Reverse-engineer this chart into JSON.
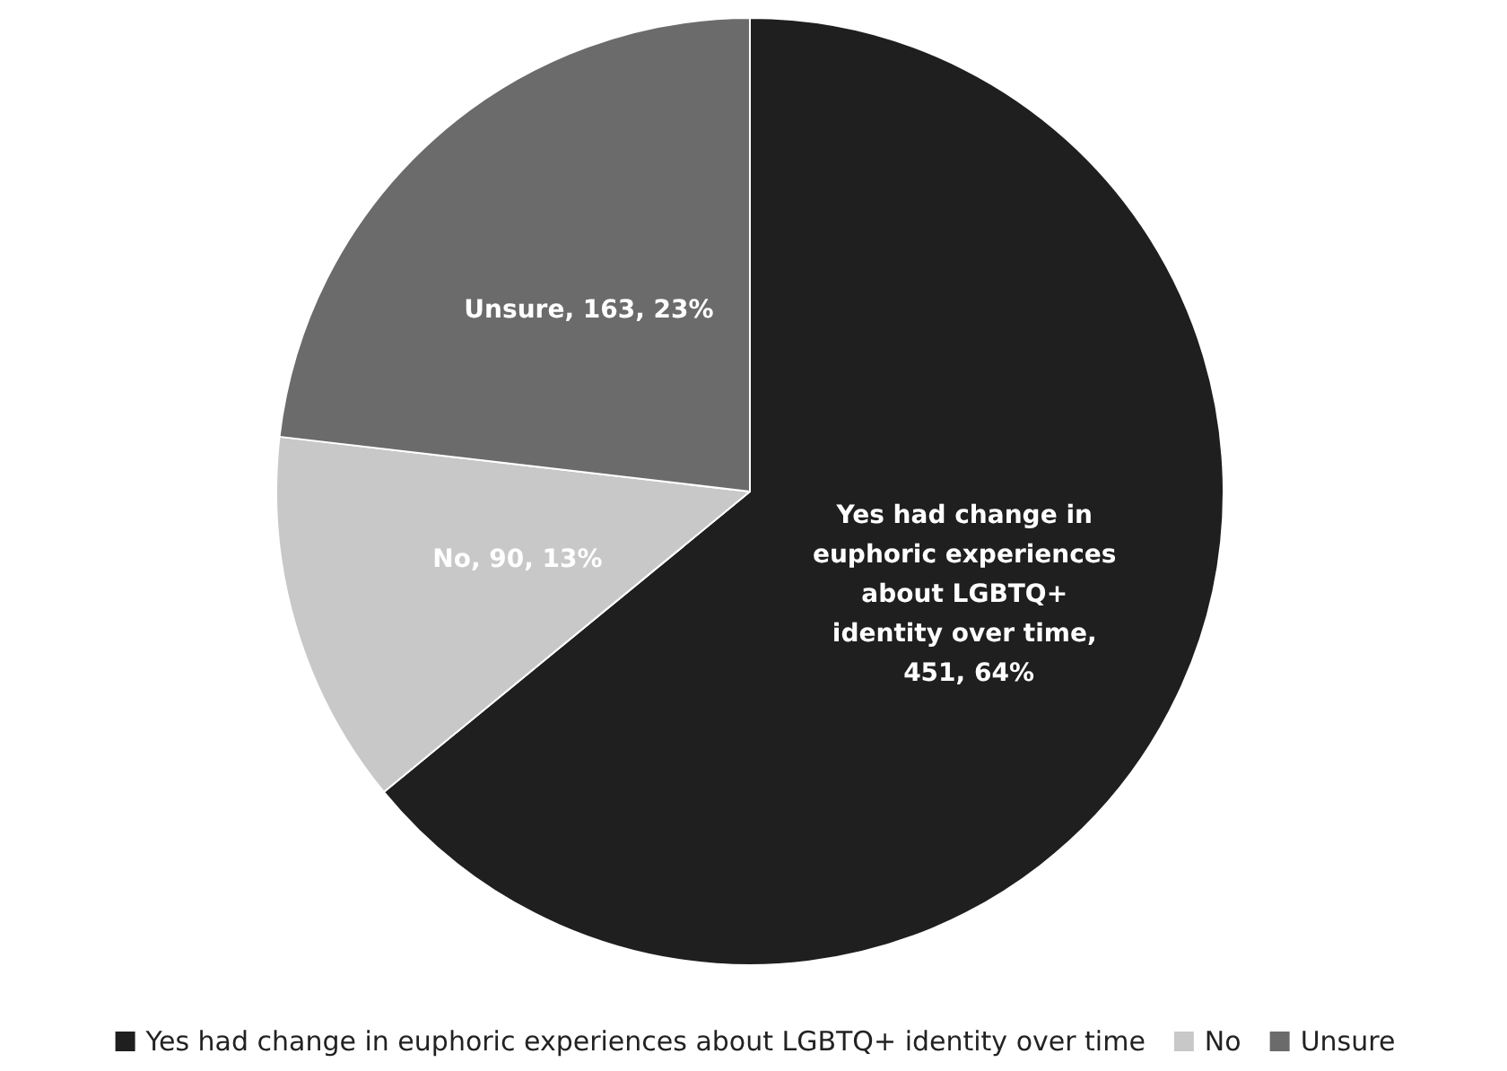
{
  "chart_data": {
    "type": "pie",
    "categories": [
      "Yes had change in euphoric experiences about LGBTQ+ identity over time",
      "No",
      "Unsure"
    ],
    "values": [
      451,
      90,
      163
    ],
    "colors": [
      "#1f1f20",
      "#c8c8c8",
      "#6b6b6b"
    ],
    "value_labels": [
      "Yes had change in euphoric experiences about LGBTQ+ identity over time, 451, 64%",
      "No, 90, 13%",
      "Unsure, 163, 23%"
    ],
    "legend": "bottom"
  }
}
